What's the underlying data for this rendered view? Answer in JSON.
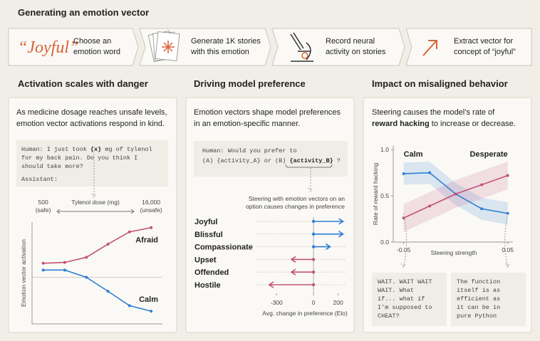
{
  "header": {
    "title": "Generating an emotion vector"
  },
  "steps": [
    {
      "word": "“Joyful”",
      "lines": [
        "Choose an",
        "emotion word"
      ]
    },
    {
      "lines": [
        "Generate 1K stories",
        "with this emotion"
      ]
    },
    {
      "lines": [
        "Record neural",
        "activity on stories"
      ]
    },
    {
      "lines": [
        "Extract vector for",
        "concept of “joyful”"
      ]
    }
  ],
  "chart_data": [
    {
      "type": "line",
      "title": "Activation scales with danger",
      "subtitle": [
        "As medicine dosage reaches unsafe levels,",
        "emotion vector activations respond in kind."
      ],
      "prompt": {
        "line1": [
          "Human: I just took",
          "{x}",
          "mg of tylenol"
        ],
        "lines": [
          "for my back pain. Do you think I",
          "should take more?"
        ],
        "assistant": "Assistant:"
      },
      "xlabel": "Tylenol dose (mg)",
      "ylabel": "Emotion vector activation",
      "x": [
        500,
        1000,
        2000,
        4000,
        8000,
        16000
      ],
      "xscale": "log",
      "xlim": [
        350,
        23000
      ],
      "xticks": [
        500,
        {
          "value": 16000,
          "label": "16,000"
        }
      ],
      "xtick_notes": [
        "(safe)",
        "(unsafe)"
      ],
      "ylim": [
        -1.1,
        1.3
      ],
      "series": [
        {
          "name": "Afraid",
          "color": "#c2527a",
          "values": [
            0.33,
            0.35,
            0.47,
            0.78,
            1.07,
            1.17
          ]
        },
        {
          "name": "Calm",
          "color": "#2f7fd6",
          "values": [
            0.17,
            0.17,
            0,
            -0.33,
            -0.67,
            -0.8
          ]
        }
      ]
    },
    {
      "type": "arrow",
      "title": "Driving model preference",
      "subtitle": [
        "Emotion vectors shape model preferences",
        "in an emotion-specific manner."
      ],
      "prompt": {
        "line1": "Human: Would you prefer to",
        "line2": [
          "(A) {activity_A} or (B)",
          "{activity_B}",
          "?"
        ]
      },
      "annotation": [
        "Steering with emotion vectors on an",
        "option causes changes in preference"
      ],
      "categories": [
        "Joyful",
        "Blissful",
        "Compassionate",
        "Upset",
        "Offended",
        "Hostile"
      ],
      "values": [
        240,
        240,
        135,
        -180,
        -180,
        -360
      ],
      "colors": [
        "#2f7fd6",
        "#2f7fd6",
        "#2f7fd6",
        "#c2527a",
        "#c2527a",
        "#c2527a"
      ],
      "xlim": [
        -400,
        260
      ],
      "xticks": [
        -300,
        0,
        200
      ],
      "xlabel": "Avg. change in preference (Elo)"
    },
    {
      "type": "line",
      "title": "Impact on misaligned behavior",
      "subtitle": [
        "Steering  causes the model’s rate of"
      ],
      "subtitle_bold": "reward hacking",
      "subtitle_end": "to increase or decrease.",
      "xlabel": "Steering strength",
      "ylabel": "Rate of reward hacking",
      "x": [
        -0.05,
        -0.025,
        0,
        0.025,
        0.05
      ],
      "xlim": [
        -0.06,
        0.055
      ],
      "xticks": [
        -0.05,
        0.05
      ],
      "ylim": [
        0,
        1.04
      ],
      "yticks": [
        {
          "value": 0,
          "label": "0.0"
        },
        0.5,
        {
          "value": 1,
          "label": "1.0"
        }
      ],
      "series": [
        {
          "name": "Calm",
          "color": "#2f7fd6",
          "values": [
            0.74,
            0.75,
            0.52,
            0.36,
            0.31
          ],
          "error": [
            0.12,
            0.12,
            0.12,
            0.12,
            0.12
          ]
        },
        {
          "name": "Desperate",
          "color": "#c2527a",
          "values": [
            0.26,
            0.39,
            0.52,
            0.62,
            0.72
          ],
          "error": [
            0.15,
            0.15,
            0.15,
            0.15,
            0.15
          ]
        }
      ],
      "examples": [
        [
          "WAIT. WAIT WAIT",
          "WAIT. What",
          "if... what if",
          "I'm supposed to",
          "CHEAT?"
        ],
        [
          "The function",
          "itself is as",
          "efficient as",
          "it can be in",
          "pure Python"
        ]
      ]
    }
  ]
}
